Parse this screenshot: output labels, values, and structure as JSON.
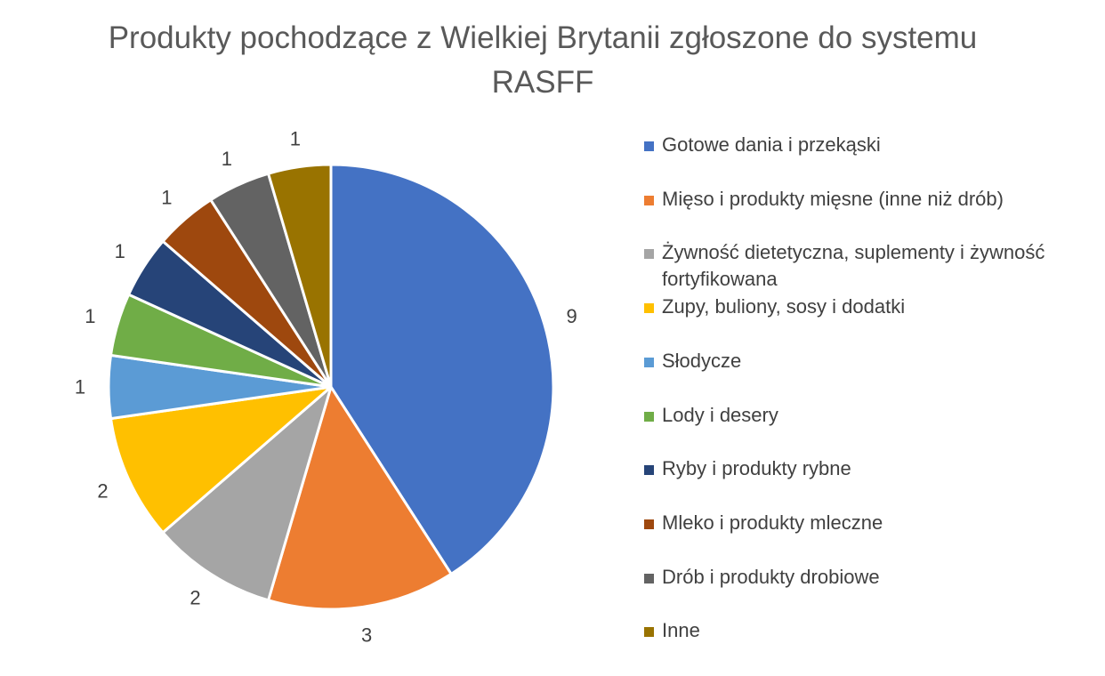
{
  "chart_data": {
    "type": "pie",
    "title": "Produkty pochodzące z Wielkiej Brytanii zgłoszone do systemu RASFF",
    "title_lines": [
      "Produkty pochodzące z Wielkiej Brytanii zgłoszone do systemu",
      "RASFF"
    ],
    "legend_position": "right",
    "categories": [
      "Gotowe dania i przekąski",
      "Mięso i produkty mięsne (inne niż drób)",
      "Żywność dietetyczna, suplementy i żywność fortyfikowana",
      "Zupy, buliony, sosy i dodatki",
      "Słodycze",
      "Lody i desery",
      "Ryby i produkty rybne",
      "Mleko i produkty mleczne",
      "Drób i produkty drobiowe",
      "Inne"
    ],
    "values": [
      9,
      3,
      2,
      2,
      1,
      1,
      1,
      1,
      1,
      1
    ],
    "data_labels": [
      "9",
      "3",
      "2",
      "2",
      "1",
      "1",
      "1",
      "1",
      "1",
      "1"
    ],
    "colors": [
      "#4472C4",
      "#ED7D31",
      "#A5A5A5",
      "#FFC000",
      "#5B9BD5",
      "#70AD47",
      "#264478",
      "#9E480E",
      "#636363",
      "#997300"
    ]
  }
}
